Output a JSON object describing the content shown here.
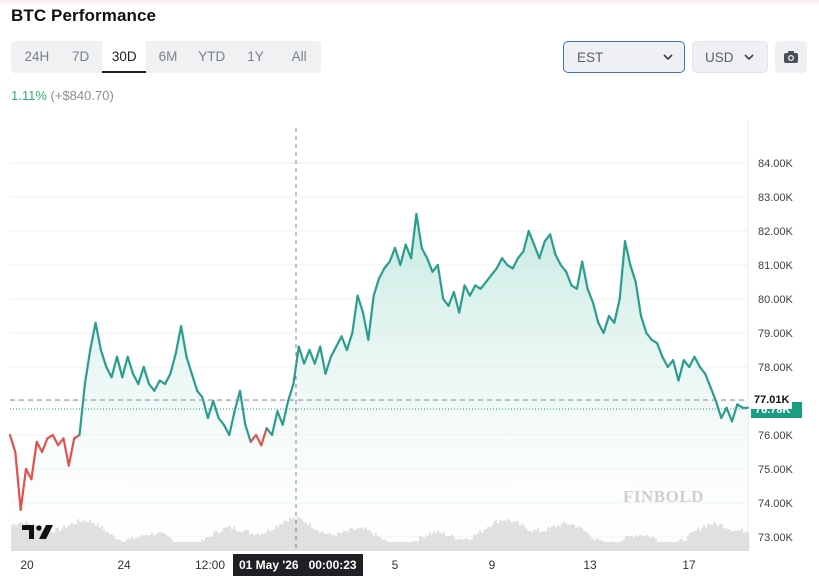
{
  "header": {
    "title": "BTC Performance"
  },
  "tabs": [
    {
      "label": "24H"
    },
    {
      "label": "7D"
    },
    {
      "label": "30D",
      "active": true
    },
    {
      "label": "6M"
    },
    {
      "label": "YTD"
    },
    {
      "label": "1Y"
    },
    {
      "label": "All"
    }
  ],
  "controls": {
    "timezone": "EST",
    "currency": "USD",
    "camera_icon": "camera-icon",
    "chevron_icon": "chevron-down-icon"
  },
  "summary": {
    "change_pct": "1.11%",
    "change_abs": "(+$840.70)"
  },
  "colors": {
    "line_up": "#2a9d8f",
    "line_down": "#e0524f",
    "area_top": "#bfe6dd",
    "price_tag": "#1b9d84",
    "volume": "#d7d7da"
  },
  "crosshair": {
    "date": "01 May '26",
    "time": "00:00:23"
  },
  "price_labels": {
    "crosshair_price": "77.01K",
    "last_price": "76.78K"
  },
  "watermark": "FINBOLD",
  "chart_data": {
    "type": "line",
    "title": "BTC Performance",
    "y_axis": {
      "ticks": [
        "84.00K",
        "83.00K",
        "82.00K",
        "81.00K",
        "80.00K",
        "79.00K",
        "78.00K",
        "77.00K",
        "76.00K",
        "75.00K",
        "74.00K",
        "73.00K"
      ],
      "ylim": [
        72600,
        84650
      ]
    },
    "x_axis": {
      "ticks": [
        "20",
        "24",
        "12:00",
        "5",
        "9",
        "13",
        "17"
      ]
    },
    "grid": true,
    "series": [
      {
        "values": [
          [
            0,
            76000
          ],
          [
            1.5,
            75500
          ],
          [
            3,
            73800
          ],
          [
            4.5,
            75000
          ],
          [
            6,
            74700
          ],
          [
            7.5,
            75800
          ],
          [
            9,
            75500
          ],
          [
            10.5,
            75900
          ],
          [
            12,
            76000
          ],
          [
            13.5,
            75700
          ],
          [
            15,
            75900
          ],
          [
            16.5,
            75100
          ],
          [
            18,
            75900
          ],
          [
            19.5,
            76000
          ],
          [
            21,
            77500
          ],
          [
            22.5,
            78500
          ],
          [
            24,
            79300
          ],
          [
            25.5,
            78500
          ],
          [
            27,
            78000
          ],
          [
            28.5,
            77700
          ],
          [
            30,
            78300
          ],
          [
            31.5,
            77700
          ],
          [
            33,
            78300
          ],
          [
            34.5,
            77800
          ],
          [
            36,
            77500
          ],
          [
            37.5,
            78000
          ],
          [
            39,
            77500
          ],
          [
            40.5,
            77300
          ],
          [
            42,
            77600
          ],
          [
            43.5,
            77500
          ],
          [
            45,
            77800
          ],
          [
            46.5,
            78400
          ],
          [
            48,
            79200
          ],
          [
            49.5,
            78300
          ],
          [
            51,
            77800
          ],
          [
            52.5,
            77300
          ],
          [
            54,
            77100
          ],
          [
            55.5,
            76500
          ],
          [
            57,
            77000
          ],
          [
            58.5,
            76500
          ],
          [
            60,
            76300
          ],
          [
            61.5,
            76000
          ],
          [
            63,
            76700
          ],
          [
            64.5,
            77300
          ],
          [
            66,
            76300
          ],
          [
            67.5,
            75800
          ],
          [
            69,
            76000
          ],
          [
            70.5,
            75700
          ],
          [
            72,
            76200
          ],
          [
            73.5,
            76000
          ],
          [
            75,
            76700
          ],
          [
            76.5,
            76300
          ],
          [
            78,
            77000
          ],
          [
            79.5,
            77500
          ],
          [
            81,
            78600
          ],
          [
            82.5,
            78100
          ],
          [
            84,
            78500
          ],
          [
            85.5,
            78100
          ],
          [
            87,
            78600
          ],
          [
            88.5,
            77800
          ],
          [
            90,
            78300
          ],
          [
            91.5,
            78600
          ],
          [
            93,
            78900
          ],
          [
            94.5,
            78500
          ],
          [
            96,
            79000
          ],
          [
            97.5,
            80100
          ],
          [
            99,
            79600
          ],
          [
            100.5,
            78800
          ],
          [
            102,
            80100
          ],
          [
            103.5,
            80600
          ],
          [
            105,
            80900
          ],
          [
            106.5,
            81100
          ],
          [
            108,
            81500
          ],
          [
            109.5,
            81000
          ],
          [
            111,
            81600
          ],
          [
            112.5,
            81200
          ],
          [
            114,
            82500
          ],
          [
            115.5,
            81500
          ],
          [
            117,
            81200
          ],
          [
            118.5,
            80800
          ],
          [
            120,
            81000
          ],
          [
            121.5,
            80000
          ],
          [
            123,
            79800
          ],
          [
            124.5,
            80200
          ],
          [
            126,
            79600
          ],
          [
            127.5,
            80400
          ],
          [
            129,
            80100
          ],
          [
            130.5,
            80400
          ],
          [
            132,
            80300
          ],
          [
            133.5,
            80500
          ],
          [
            135,
            80700
          ],
          [
            136.5,
            80900
          ],
          [
            138,
            81200
          ],
          [
            139.5,
            81000
          ],
          [
            141,
            80900
          ],
          [
            142.5,
            81200
          ],
          [
            144,
            81400
          ],
          [
            145.5,
            82000
          ],
          [
            147,
            81600
          ],
          [
            148.5,
            81200
          ],
          [
            150,
            81700
          ],
          [
            151.5,
            81900
          ],
          [
            153,
            81300
          ],
          [
            154.5,
            81000
          ],
          [
            156,
            80800
          ],
          [
            157.5,
            80400
          ],
          [
            159,
            80300
          ],
          [
            160.5,
            81100
          ],
          [
            162,
            80300
          ],
          [
            163.5,
            79900
          ],
          [
            165,
            79300
          ],
          [
            166.5,
            79000
          ],
          [
            168,
            79500
          ],
          [
            169.5,
            79300
          ],
          [
            171,
            80000
          ],
          [
            172.5,
            81700
          ],
          [
            174,
            81000
          ],
          [
            175.5,
            80500
          ],
          [
            177,
            79500
          ],
          [
            178.5,
            79000
          ],
          [
            180,
            78800
          ],
          [
            181.5,
            78700
          ],
          [
            183,
            78300
          ],
          [
            184.5,
            78000
          ],
          [
            186,
            78200
          ],
          [
            187.5,
            77600
          ],
          [
            189,
            78200
          ],
          [
            190.5,
            78000
          ],
          [
            192,
            78300
          ],
          [
            193.5,
            78000
          ],
          [
            195,
            77800
          ],
          [
            196.5,
            77400
          ],
          [
            198,
            77000
          ],
          [
            199.5,
            76500
          ],
          [
            201,
            76800
          ],
          [
            202.5,
            76400
          ],
          [
            204,
            76900
          ],
          [
            205.5,
            76800
          ],
          [
            207,
            76800
          ]
        ]
      }
    ]
  }
}
